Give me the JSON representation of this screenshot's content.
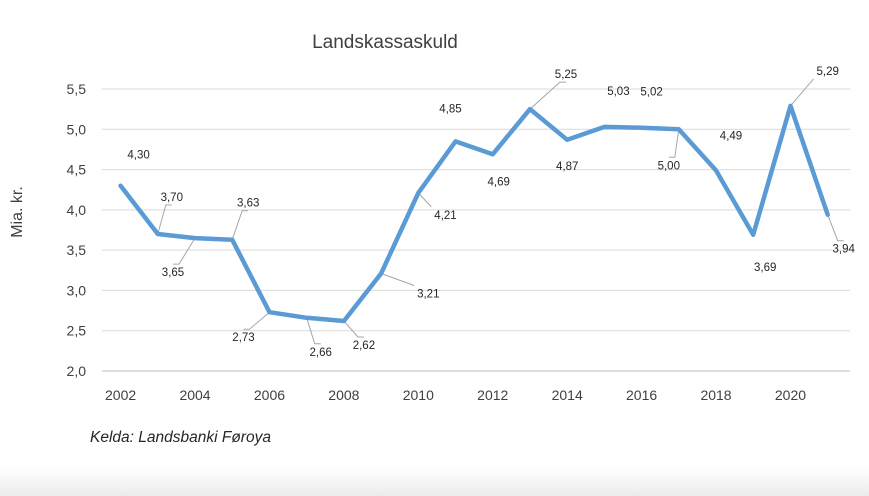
{
  "chart_data": {
    "type": "line",
    "title": "Landskassaskuld",
    "xlabel": "",
    "ylabel": "Mia. kr.",
    "x": [
      2002,
      2003,
      2004,
      2005,
      2006,
      2007,
      2008,
      2009,
      2010,
      2011,
      2012,
      2013,
      2014,
      2015,
      2016,
      2017,
      2018,
      2019,
      2020,
      2021
    ],
    "series": [
      {
        "values": [
          4.3,
          3.7,
          3.65,
          3.63,
          2.73,
          2.66,
          2.62,
          3.21,
          4.21,
          4.85,
          4.69,
          5.25,
          4.87,
          5.03,
          5.02,
          5.0,
          4.49,
          3.69,
          5.29,
          3.94
        ],
        "data_labels": [
          "4,30",
          "3,70",
          "3,65",
          "3,63",
          "2,73",
          "2,66",
          "2,62",
          "3,21",
          "4,21",
          "4,85",
          "4,69",
          "5,25",
          "4,87",
          "5,03",
          "5,02",
          "5,00",
          "4,49",
          "3,69",
          "5,29",
          "3,94"
        ],
        "color": "#5b9bd5"
      }
    ],
    "ylim": [
      2.0,
      5.5
    ],
    "yticks": [
      "2,0",
      "2,5",
      "3,0",
      "3,5",
      "4,0",
      "4,5",
      "5,0",
      "5,5"
    ],
    "xticks": [
      "2002",
      "2004",
      "2006",
      "2008",
      "2010",
      "2012",
      "2014",
      "2016",
      "2018",
      "2020"
    ],
    "grid": true,
    "legend": "none"
  },
  "source_note": "Kelda: Landsbanki Føroya"
}
